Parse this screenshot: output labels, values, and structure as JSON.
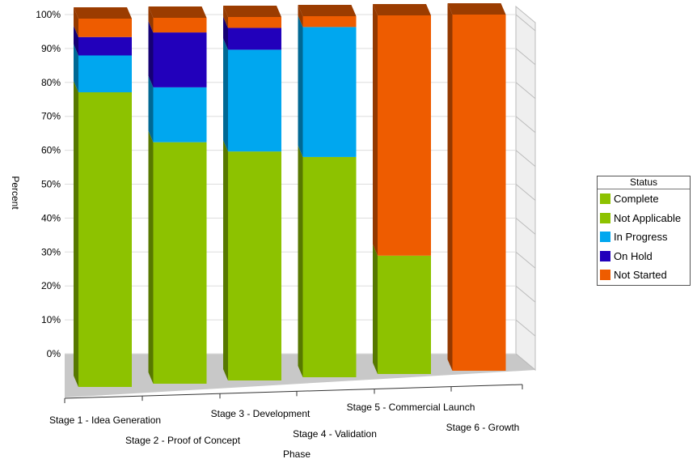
{
  "chart_data": {
    "type": "bar",
    "stacked": true,
    "three_d": true,
    "title": "",
    "xlabel": "Phase",
    "ylabel": "Percent",
    "ylim": [
      0,
      100
    ],
    "y_ticks": [
      "0%",
      "10%",
      "20%",
      "30%",
      "40%",
      "50%",
      "60%",
      "70%",
      "80%",
      "90%",
      "100%"
    ],
    "categories": [
      "Stage 1 - Idea Generation",
      "Stage 2 - Proof of Concept",
      "Stage 3 - Development",
      "Stage 4 - Validation",
      "Stage 5 - Commercial Launch",
      "Stage 6 - Growth"
    ],
    "series": [
      {
        "name": "Complete",
        "color": "#8dc200",
        "values": [
          0,
          0,
          0,
          0,
          0,
          0
        ]
      },
      {
        "name": "Not Applicable",
        "color": "#8dc200",
        "values": [
          80,
          66,
          63,
          61,
          33,
          0
        ]
      },
      {
        "name": "In Progress",
        "color": "#00a7ef",
        "values": [
          10,
          15,
          28,
          36,
          0,
          0
        ]
      },
      {
        "name": "On Hold",
        "color": "#2200bb",
        "values": [
          5,
          15,
          6,
          0,
          0,
          0
        ]
      },
      {
        "name": "Not Started",
        "color": "#ee5c00",
        "values": [
          5,
          4,
          3,
          3,
          67,
          100
        ]
      }
    ],
    "grid": true,
    "legend_title": "Status",
    "legend_position": "right"
  }
}
